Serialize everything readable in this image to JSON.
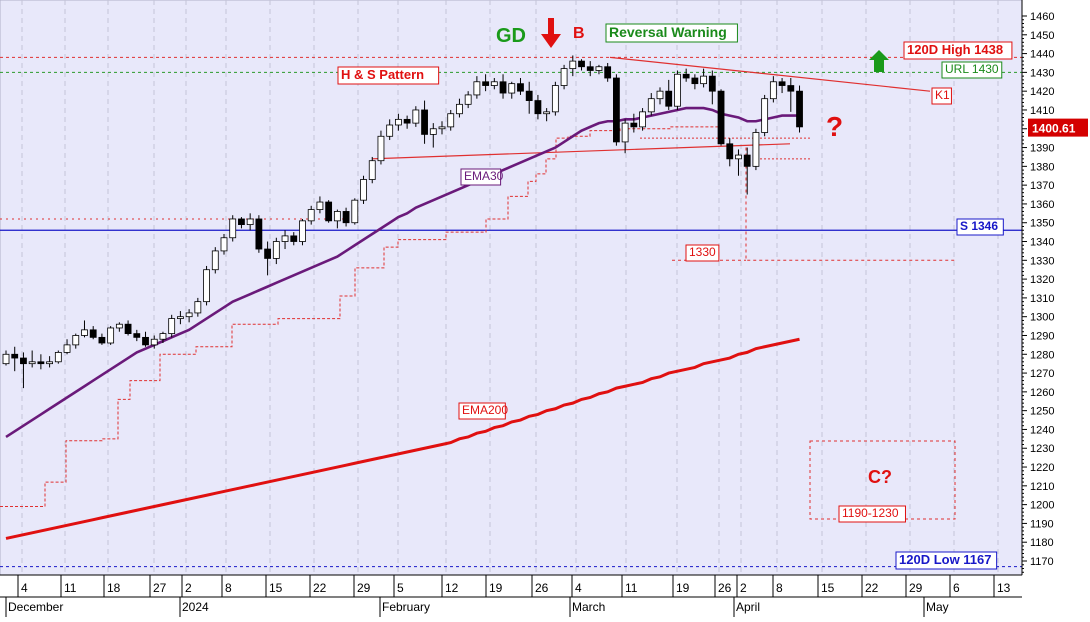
{
  "chart_data": {
    "type": "candlestick",
    "y_axis": {
      "min": 1160,
      "max": 1465,
      "ticks": [
        1170,
        1180,
        1190,
        1200,
        1210,
        1220,
        1230,
        1240,
        1250,
        1260,
        1270,
        1280,
        1290,
        1300,
        1310,
        1320,
        1330,
        1340,
        1350,
        1360,
        1370,
        1380,
        1390,
        1400,
        1410,
        1420,
        1430,
        1440,
        1450,
        1460
      ],
      "last_price_label": "1400.61"
    },
    "x_axis": {
      "day_ticks": [
        "4",
        "11",
        "18",
        "27",
        "2",
        "8",
        "15",
        "22",
        "29",
        "5",
        "12",
        "19",
        "26",
        "4",
        "11",
        "19",
        "26",
        "2",
        "8",
        "15",
        "22",
        "29",
        "6",
        "13"
      ],
      "month_labels": [
        "December",
        "2024",
        "February",
        "March",
        "April",
        "May"
      ]
    },
    "annotations": {
      "gd": "GD",
      "b": "B",
      "reversal_warning": "Reversal Warning",
      "high_120d": "120D High 1438",
      "url": "URL 1430",
      "hs_pattern": "H & S Pattern",
      "k1": "K1",
      "question": "?",
      "ema30": "EMA30",
      "support": "S 1346",
      "level_1330": "1330",
      "ema200": "EMA200",
      "c_question": "C?",
      "target_range": "1190-1230",
      "low_120d": "120D Low 1167"
    },
    "levels": {
      "high_120d": 1438,
      "url": 1430,
      "support": 1346,
      "level_1330": 1330,
      "low_120d": 1167
    },
    "candles": [
      {
        "o": 1275,
        "h": 1282,
        "l": 1274,
        "c": 1280
      },
      {
        "o": 1280,
        "h": 1284,
        "l": 1271,
        "c": 1278
      },
      {
        "o": 1278,
        "h": 1281,
        "l": 1262,
        "c": 1275
      },
      {
        "o": 1275,
        "h": 1282,
        "l": 1273,
        "c": 1276
      },
      {
        "o": 1276,
        "h": 1280,
        "l": 1272,
        "c": 1275
      },
      {
        "o": 1275,
        "h": 1279,
        "l": 1273,
        "c": 1276
      },
      {
        "o": 1276,
        "h": 1282,
        "l": 1275,
        "c": 1281
      },
      {
        "o": 1281,
        "h": 1288,
        "l": 1280,
        "c": 1285
      },
      {
        "o": 1285,
        "h": 1291,
        "l": 1283,
        "c": 1290
      },
      {
        "o": 1290,
        "h": 1298,
        "l": 1289,
        "c": 1293
      },
      {
        "o": 1293,
        "h": 1295,
        "l": 1288,
        "c": 1289
      },
      {
        "o": 1289,
        "h": 1291,
        "l": 1285,
        "c": 1286
      },
      {
        "o": 1286,
        "h": 1295,
        "l": 1285,
        "c": 1294
      },
      {
        "o": 1294,
        "h": 1297,
        "l": 1292,
        "c": 1296
      },
      {
        "o": 1296,
        "h": 1298,
        "l": 1290,
        "c": 1291
      },
      {
        "o": 1291,
        "h": 1293,
        "l": 1287,
        "c": 1289
      },
      {
        "o": 1289,
        "h": 1292,
        "l": 1284,
        "c": 1285
      },
      {
        "o": 1285,
        "h": 1290,
        "l": 1283,
        "c": 1288
      },
      {
        "o": 1288,
        "h": 1292,
        "l": 1286,
        "c": 1291
      },
      {
        "o": 1291,
        "h": 1301,
        "l": 1289,
        "c": 1299
      },
      {
        "o": 1299,
        "h": 1303,
        "l": 1296,
        "c": 1300
      },
      {
        "o": 1300,
        "h": 1304,
        "l": 1297,
        "c": 1302
      },
      {
        "o": 1302,
        "h": 1310,
        "l": 1300,
        "c": 1308
      },
      {
        "o": 1308,
        "h": 1327,
        "l": 1306,
        "c": 1325
      },
      {
        "o": 1325,
        "h": 1337,
        "l": 1323,
        "c": 1335
      },
      {
        "o": 1335,
        "h": 1344,
        "l": 1333,
        "c": 1342
      },
      {
        "o": 1342,
        "h": 1354,
        "l": 1340,
        "c": 1352
      },
      {
        "o": 1352,
        "h": 1353,
        "l": 1347,
        "c": 1349
      },
      {
        "o": 1349,
        "h": 1355,
        "l": 1346,
        "c": 1352
      },
      {
        "o": 1352,
        "h": 1354,
        "l": 1334,
        "c": 1336
      },
      {
        "o": 1336,
        "h": 1340,
        "l": 1322,
        "c": 1331
      },
      {
        "o": 1331,
        "h": 1342,
        "l": 1328,
        "c": 1340
      },
      {
        "o": 1340,
        "h": 1346,
        "l": 1336,
        "c": 1343
      },
      {
        "o": 1343,
        "h": 1345,
        "l": 1338,
        "c": 1340
      },
      {
        "o": 1340,
        "h": 1352,
        "l": 1338,
        "c": 1351
      },
      {
        "o": 1351,
        "h": 1359,
        "l": 1349,
        "c": 1357
      },
      {
        "o": 1357,
        "h": 1364,
        "l": 1355,
        "c": 1361
      },
      {
        "o": 1361,
        "h": 1362,
        "l": 1350,
        "c": 1351
      },
      {
        "o": 1351,
        "h": 1357,
        "l": 1347,
        "c": 1356
      },
      {
        "o": 1356,
        "h": 1358,
        "l": 1348,
        "c": 1350
      },
      {
        "o": 1350,
        "h": 1363,
        "l": 1349,
        "c": 1362
      },
      {
        "o": 1362,
        "h": 1375,
        "l": 1360,
        "c": 1373
      },
      {
        "o": 1373,
        "h": 1385,
        "l": 1371,
        "c": 1383
      },
      {
        "o": 1383,
        "h": 1399,
        "l": 1381,
        "c": 1396
      },
      {
        "o": 1396,
        "h": 1405,
        "l": 1394,
        "c": 1402
      },
      {
        "o": 1402,
        "h": 1408,
        "l": 1399,
        "c": 1405
      },
      {
        "o": 1405,
        "h": 1407,
        "l": 1400,
        "c": 1403
      },
      {
        "o": 1403,
        "h": 1412,
        "l": 1401,
        "c": 1410
      },
      {
        "o": 1410,
        "h": 1415,
        "l": 1392,
        "c": 1397
      },
      {
        "o": 1397,
        "h": 1403,
        "l": 1390,
        "c": 1400
      },
      {
        "o": 1400,
        "h": 1404,
        "l": 1397,
        "c": 1401
      },
      {
        "o": 1401,
        "h": 1410,
        "l": 1399,
        "c": 1408
      },
      {
        "o": 1408,
        "h": 1416,
        "l": 1406,
        "c": 1413
      },
      {
        "o": 1413,
        "h": 1420,
        "l": 1411,
        "c": 1418
      },
      {
        "o": 1418,
        "h": 1428,
        "l": 1416,
        "c": 1425
      },
      {
        "o": 1425,
        "h": 1429,
        "l": 1420,
        "c": 1423
      },
      {
        "o": 1423,
        "h": 1427,
        "l": 1421,
        "c": 1425
      },
      {
        "o": 1425,
        "h": 1429,
        "l": 1416,
        "c": 1419
      },
      {
        "o": 1419,
        "h": 1425,
        "l": 1416,
        "c": 1424
      },
      {
        "o": 1424,
        "h": 1427,
        "l": 1418,
        "c": 1420
      },
      {
        "o": 1420,
        "h": 1425,
        "l": 1408,
        "c": 1415
      },
      {
        "o": 1415,
        "h": 1418,
        "l": 1405,
        "c": 1408
      },
      {
        "o": 1408,
        "h": 1411,
        "l": 1404,
        "c": 1409
      },
      {
        "o": 1409,
        "h": 1425,
        "l": 1407,
        "c": 1423
      },
      {
        "o": 1423,
        "h": 1434,
        "l": 1421,
        "c": 1432
      },
      {
        "o": 1432,
        "h": 1439,
        "l": 1428,
        "c": 1436
      },
      {
        "o": 1436,
        "h": 1437,
        "l": 1431,
        "c": 1433
      },
      {
        "o": 1433,
        "h": 1436,
        "l": 1428,
        "c": 1431
      },
      {
        "o": 1431,
        "h": 1434,
        "l": 1429,
        "c": 1433
      },
      {
        "o": 1433,
        "h": 1435,
        "l": 1425,
        "c": 1427
      },
      {
        "o": 1427,
        "h": 1429,
        "l": 1391,
        "c": 1393
      },
      {
        "o": 1393,
        "h": 1405,
        "l": 1387,
        "c": 1403
      },
      {
        "o": 1403,
        "h": 1408,
        "l": 1398,
        "c": 1401
      },
      {
        "o": 1401,
        "h": 1411,
        "l": 1399,
        "c": 1409
      },
      {
        "o": 1409,
        "h": 1419,
        "l": 1407,
        "c": 1416
      },
      {
        "o": 1416,
        "h": 1422,
        "l": 1413,
        "c": 1420
      },
      {
        "o": 1420,
        "h": 1426,
        "l": 1410,
        "c": 1412
      },
      {
        "o": 1412,
        "h": 1431,
        "l": 1410,
        "c": 1429
      },
      {
        "o": 1429,
        "h": 1432,
        "l": 1425,
        "c": 1427
      },
      {
        "o": 1427,
        "h": 1429,
        "l": 1421,
        "c": 1424
      },
      {
        "o": 1424,
        "h": 1432,
        "l": 1422,
        "c": 1428
      },
      {
        "o": 1428,
        "h": 1431,
        "l": 1413,
        "c": 1420
      },
      {
        "o": 1420,
        "h": 1421,
        "l": 1391,
        "c": 1392
      },
      {
        "o": 1392,
        "h": 1395,
        "l": 1380,
        "c": 1384
      },
      {
        "o": 1384,
        "h": 1389,
        "l": 1375,
        "c": 1386
      },
      {
        "o": 1386,
        "h": 1390,
        "l": 1365,
        "c": 1380
      },
      {
        "o": 1380,
        "h": 1400,
        "l": 1378,
        "c": 1398
      },
      {
        "o": 1398,
        "h": 1418,
        "l": 1396,
        "c": 1416
      },
      {
        "o": 1416,
        "h": 1428,
        "l": 1414,
        "c": 1425
      },
      {
        "o": 1425,
        "h": 1427,
        "l": 1419,
        "c": 1423
      },
      {
        "o": 1423,
        "h": 1427,
        "l": 1409,
        "c": 1420
      },
      {
        "o": 1420,
        "h": 1423,
        "l": 1398,
        "c": 1401
      }
    ],
    "ema30": [
      1236,
      1239,
      1242,
      1245,
      1248,
      1251,
      1254,
      1257,
      1260,
      1263,
      1266,
      1269,
      1272,
      1275,
      1278,
      1281,
      1283,
      1285,
      1287,
      1289,
      1291,
      1293,
      1296,
      1299,
      1302,
      1305,
      1308,
      1310,
      1312,
      1314,
      1316,
      1318,
      1320,
      1322,
      1324,
      1326,
      1328,
      1330,
      1332,
      1335,
      1338,
      1341,
      1344,
      1347,
      1350,
      1353,
      1355,
      1358,
      1360,
      1362,
      1364,
      1366,
      1368,
      1370,
      1372,
      1374,
      1376,
      1378,
      1380,
      1382,
      1384,
      1386,
      1388,
      1390,
      1393,
      1396,
      1399,
      1401,
      1403,
      1404,
      1404,
      1405,
      1405,
      1406,
      1407,
      1408,
      1409,
      1410,
      1411,
      1411,
      1411,
      1410,
      1408,
      1407,
      1406,
      1404,
      1404,
      1405,
      1406,
      1407,
      1407,
      1407
    ],
    "ema200": [
      1182,
      1183,
      1184,
      1185,
      1186,
      1187,
      1188,
      1189,
      1190,
      1191,
      1192,
      1193,
      1194,
      1195,
      1196,
      1197,
      1198,
      1199,
      1200,
      1201,
      1202,
      1203,
      1204,
      1205,
      1206,
      1207,
      1208,
      1209,
      1210,
      1211,
      1212,
      1213,
      1214,
      1215,
      1216,
      1217,
      1218,
      1219,
      1220,
      1221,
      1222,
      1223,
      1224,
      1225,
      1226,
      1227,
      1228,
      1229,
      1230,
      1231,
      1232,
      1233,
      1235,
      1236,
      1238,
      1239,
      1241,
      1242,
      1244,
      1245,
      1247,
      1248,
      1250,
      1251,
      1253,
      1254,
      1256,
      1257,
      1259,
      1260,
      1262,
      1263,
      1264,
      1265,
      1267,
      1268,
      1270,
      1271,
      1272,
      1273,
      1275,
      1276,
      1277,
      1278,
      1280,
      1281,
      1283,
      1284,
      1285,
      1286,
      1287,
      1288
    ]
  }
}
